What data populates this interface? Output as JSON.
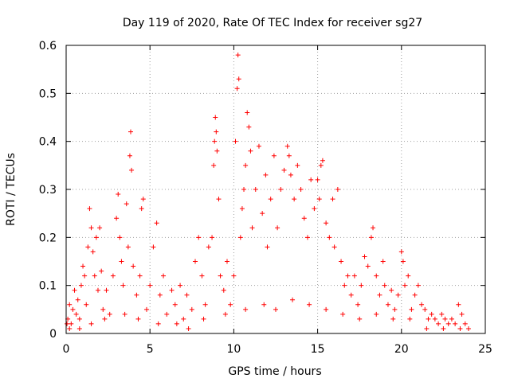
{
  "chart_data": {
    "type": "scatter",
    "title": "Day 119 of 2020, Rate Of TEC Index for receiver sg27",
    "xlabel": "GPS time / hours",
    "ylabel": "ROTI / TECUs",
    "xlim": [
      0,
      25
    ],
    "ylim": [
      0,
      0.6
    ],
    "grid": true,
    "marker": "+",
    "marker_color": "#ff0000",
    "x_ticks": [
      0,
      5,
      10,
      15,
      20,
      25
    ],
    "x_tick_labels": [
      "0",
      "5",
      "10",
      "15",
      "20",
      "25"
    ],
    "y_ticks": [
      0,
      0.1,
      0.2,
      0.3,
      0.4,
      0.5,
      0.6
    ],
    "y_tick_labels": [
      "0",
      "0.1",
      "0.2",
      "0.3",
      "0.4",
      "0.5",
      "0.6"
    ],
    "series": [
      {
        "name": "ROTI sg27",
        "points": [
          [
            0.05,
            0.02
          ],
          [
            0.1,
            0.03
          ],
          [
            0.2,
            0.06
          ],
          [
            0.3,
            0.02
          ],
          [
            0.4,
            0.05
          ],
          [
            0.5,
            0.09
          ],
          [
            0.6,
            0.04
          ],
          [
            0.7,
            0.07
          ],
          [
            0.8,
            0.03
          ],
          [
            0.9,
            0.1
          ],
          [
            1.0,
            0.14
          ],
          [
            1.1,
            0.12
          ],
          [
            1.2,
            0.06
          ],
          [
            1.3,
            0.18
          ],
          [
            1.4,
            0.26
          ],
          [
            1.5,
            0.22
          ],
          [
            1.6,
            0.17
          ],
          [
            1.7,
            0.12
          ],
          [
            1.8,
            0.2
          ],
          [
            1.9,
            0.09
          ],
          [
            2.0,
            0.22
          ],
          [
            2.1,
            0.13
          ],
          [
            2.2,
            0.05
          ],
          [
            2.4,
            0.09
          ],
          [
            2.6,
            0.04
          ],
          [
            2.8,
            0.12
          ],
          [
            3.0,
            0.24
          ],
          [
            3.1,
            0.29
          ],
          [
            3.2,
            0.2
          ],
          [
            3.3,
            0.15
          ],
          [
            3.4,
            0.1
          ],
          [
            3.6,
            0.27
          ],
          [
            3.7,
            0.18
          ],
          [
            3.8,
            0.37
          ],
          [
            3.85,
            0.42
          ],
          [
            3.9,
            0.34
          ],
          [
            4.0,
            0.14
          ],
          [
            4.2,
            0.08
          ],
          [
            4.4,
            0.12
          ],
          [
            4.5,
            0.26
          ],
          [
            4.6,
            0.28
          ],
          [
            4.8,
            0.05
          ],
          [
            5.0,
            0.1
          ],
          [
            5.2,
            0.18
          ],
          [
            5.4,
            0.23
          ],
          [
            5.6,
            0.08
          ],
          [
            5.8,
            0.12
          ],
          [
            6.0,
            0.04
          ],
          [
            6.3,
            0.09
          ],
          [
            6.5,
            0.06
          ],
          [
            6.8,
            0.1
          ],
          [
            7.0,
            0.03
          ],
          [
            7.2,
            0.08
          ],
          [
            7.5,
            0.05
          ],
          [
            7.7,
            0.15
          ],
          [
            7.9,
            0.2
          ],
          [
            8.1,
            0.12
          ],
          [
            8.3,
            0.06
          ],
          [
            8.5,
            0.18
          ],
          [
            8.7,
            0.2
          ],
          [
            8.8,
            0.35
          ],
          [
            8.85,
            0.4
          ],
          [
            8.9,
            0.45
          ],
          [
            8.95,
            0.42
          ],
          [
            9.0,
            0.38
          ],
          [
            9.1,
            0.28
          ],
          [
            9.2,
            0.12
          ],
          [
            9.4,
            0.09
          ],
          [
            9.6,
            0.15
          ],
          [
            9.8,
            0.06
          ],
          [
            10.0,
            0.12
          ],
          [
            10.1,
            0.4
          ],
          [
            10.2,
            0.51
          ],
          [
            10.25,
            0.58
          ],
          [
            10.3,
            0.53
          ],
          [
            10.4,
            0.2
          ],
          [
            10.5,
            0.26
          ],
          [
            10.6,
            0.3
          ],
          [
            10.7,
            0.35
          ],
          [
            10.8,
            0.46
          ],
          [
            10.9,
            0.43
          ],
          [
            11.0,
            0.38
          ],
          [
            11.1,
            0.22
          ],
          [
            11.3,
            0.3
          ],
          [
            11.5,
            0.39
          ],
          [
            11.7,
            0.25
          ],
          [
            11.9,
            0.33
          ],
          [
            12.0,
            0.18
          ],
          [
            12.2,
            0.28
          ],
          [
            12.4,
            0.37
          ],
          [
            12.6,
            0.22
          ],
          [
            12.8,
            0.3
          ],
          [
            13.0,
            0.34
          ],
          [
            13.2,
            0.39
          ],
          [
            13.3,
            0.37
          ],
          [
            13.4,
            0.33
          ],
          [
            13.6,
            0.28
          ],
          [
            13.8,
            0.35
          ],
          [
            14.0,
            0.3
          ],
          [
            14.2,
            0.24
          ],
          [
            14.4,
            0.2
          ],
          [
            14.6,
            0.32
          ],
          [
            14.8,
            0.26
          ],
          [
            15.0,
            0.32
          ],
          [
            15.1,
            0.28
          ],
          [
            15.2,
            0.35
          ],
          [
            15.3,
            0.36
          ],
          [
            15.5,
            0.23
          ],
          [
            15.7,
            0.2
          ],
          [
            15.9,
            0.28
          ],
          [
            16.0,
            0.18
          ],
          [
            16.2,
            0.3
          ],
          [
            16.4,
            0.15
          ],
          [
            16.6,
            0.1
          ],
          [
            16.8,
            0.12
          ],
          [
            17.0,
            0.08
          ],
          [
            17.2,
            0.12
          ],
          [
            17.4,
            0.06
          ],
          [
            17.6,
            0.1
          ],
          [
            17.8,
            0.16
          ],
          [
            18.0,
            0.14
          ],
          [
            18.2,
            0.2
          ],
          [
            18.3,
            0.22
          ],
          [
            18.5,
            0.12
          ],
          [
            18.7,
            0.08
          ],
          [
            18.9,
            0.15
          ],
          [
            19.0,
            0.1
          ],
          [
            19.2,
            0.06
          ],
          [
            19.4,
            0.09
          ],
          [
            19.6,
            0.05
          ],
          [
            19.8,
            0.08
          ],
          [
            20.0,
            0.17
          ],
          [
            20.1,
            0.15
          ],
          [
            20.2,
            0.1
          ],
          [
            20.4,
            0.12
          ],
          [
            20.6,
            0.05
          ],
          [
            20.8,
            0.08
          ],
          [
            21.0,
            0.1
          ],
          [
            21.2,
            0.06
          ],
          [
            21.4,
            0.05
          ],
          [
            21.6,
            0.03
          ],
          [
            21.8,
            0.04
          ],
          [
            22.0,
            0.03
          ],
          [
            22.2,
            0.02
          ],
          [
            22.4,
            0.04
          ],
          [
            22.6,
            0.03
          ],
          [
            22.8,
            0.02
          ],
          [
            23.0,
            0.03
          ],
          [
            23.2,
            0.02
          ],
          [
            23.4,
            0.06
          ],
          [
            23.6,
            0.04
          ],
          [
            23.8,
            0.02
          ],
          [
            24.0,
            0.01
          ],
          [
            0.2,
            0.01
          ],
          [
            0.8,
            0.01
          ],
          [
            1.5,
            0.02
          ],
          [
            2.3,
            0.03
          ],
          [
            3.5,
            0.04
          ],
          [
            4.3,
            0.03
          ],
          [
            5.5,
            0.02
          ],
          [
            6.6,
            0.02
          ],
          [
            7.3,
            0.01
          ],
          [
            8.2,
            0.03
          ],
          [
            9.5,
            0.04
          ],
          [
            10.7,
            0.05
          ],
          [
            11.8,
            0.06
          ],
          [
            12.5,
            0.05
          ],
          [
            13.5,
            0.07
          ],
          [
            14.5,
            0.06
          ],
          [
            15.5,
            0.05
          ],
          [
            16.5,
            0.04
          ],
          [
            17.5,
            0.03
          ],
          [
            18.5,
            0.04
          ],
          [
            19.5,
            0.03
          ],
          [
            20.5,
            0.03
          ],
          [
            21.5,
            0.01
          ],
          [
            22.5,
            0.01
          ],
          [
            23.5,
            0.01
          ]
        ]
      }
    ]
  }
}
